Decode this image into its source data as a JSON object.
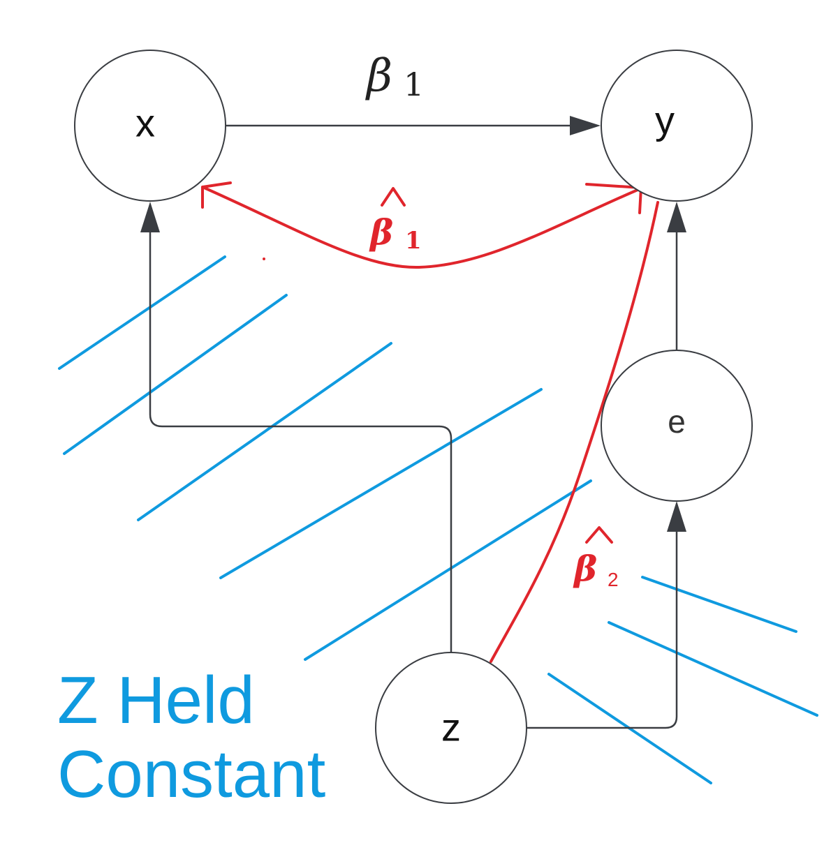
{
  "nodes": {
    "x": "x",
    "y": "y",
    "e": "e",
    "z": "z"
  },
  "labels": {
    "beta1": {
      "symbol": "β",
      "subscript": "1"
    },
    "beta1_hat": {
      "symbol": "β",
      "subscript": "1"
    },
    "beta2_hat": {
      "symbol": "β",
      "subscript": "2"
    }
  },
  "caption": {
    "line1": "Z Held",
    "line2": "Constant"
  },
  "colors": {
    "annotation_red": "#e0252c",
    "hatch_blue": "#0f9adf",
    "edge_gray": "#3a3d42"
  }
}
